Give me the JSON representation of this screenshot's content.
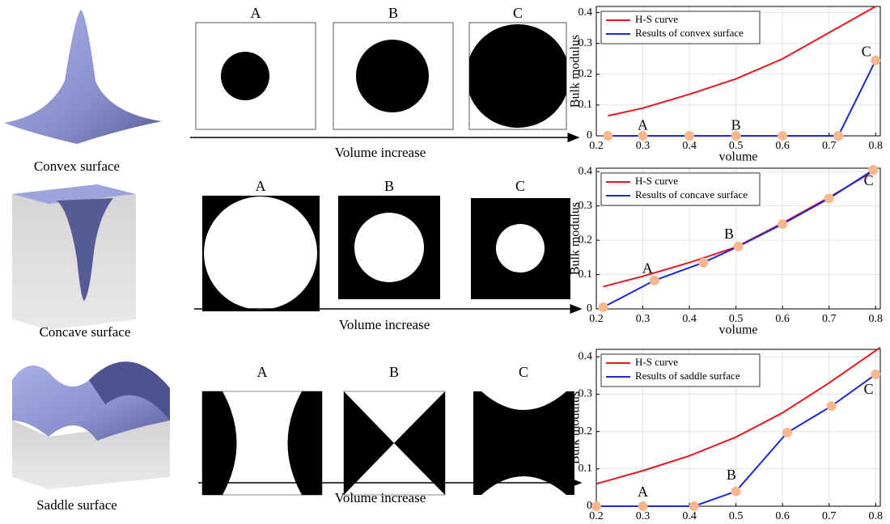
{
  "panels": [
    {
      "surface_label": "Convex surface",
      "cell_labels": [
        "A",
        "B",
        "C"
      ],
      "arrow_label": "Volume increase"
    },
    {
      "surface_label": "Concave surface",
      "cell_labels": [
        "A",
        "B",
        "C"
      ],
      "arrow_label": "Volume increase"
    },
    {
      "surface_label": "Saddle surface",
      "cell_labels": [
        "A",
        "B",
        "C"
      ],
      "arrow_label": "Volume increase"
    }
  ],
  "chart_data": [
    {
      "type": "line",
      "xlabel": "volume",
      "ylabel": "Bulk modulus",
      "xlim": [
        0.2,
        0.81
      ],
      "ylim": [
        0,
        0.42
      ],
      "xticks": [
        0.2,
        0.3,
        0.4,
        0.5,
        0.6,
        0.7,
        0.8
      ],
      "yticks": [
        0,
        0.1,
        0.2,
        0.3,
        0.4
      ],
      "grid": true,
      "legend": "upper left",
      "marker_color": "#f7b78e",
      "series": [
        {
          "name": "H-S curve",
          "color": "#e8141c",
          "x": [
            0.225,
            0.3,
            0.4,
            0.5,
            0.6,
            0.7,
            0.8
          ],
          "values": [
            0.065,
            0.09,
            0.135,
            0.185,
            0.25,
            0.335,
            0.42
          ]
        },
        {
          "name": "Results of convex surface",
          "color": "#1a28d8",
          "markers": true,
          "x": [
            0.225,
            0.3,
            0.4,
            0.5,
            0.6,
            0.72,
            0.8
          ],
          "values": [
            0,
            0,
            0,
            0,
            0,
            0,
            0.245
          ]
        }
      ],
      "annotations": [
        {
          "text": "A",
          "x": 0.3,
          "y": 0.03
        },
        {
          "text": "B",
          "x": 0.5,
          "y": 0.03
        },
        {
          "text": "C",
          "x": 0.78,
          "y": 0.27
        }
      ]
    },
    {
      "type": "line",
      "xlabel": "volume",
      "ylabel": "Bulk modulus",
      "xlim": [
        0.2,
        0.81
      ],
      "ylim": [
        0,
        0.41
      ],
      "xticks": [
        0.2,
        0.3,
        0.4,
        0.5,
        0.6,
        0.7,
        0.8
      ],
      "yticks": [
        0,
        0.1,
        0.2,
        0.3,
        0.4
      ],
      "grid": true,
      "legend": "upper left",
      "marker_color": "#f7b78e",
      "series": [
        {
          "name": "H-S curve",
          "color": "#e8141c",
          "x": [
            0.215,
            0.3,
            0.4,
            0.5,
            0.6,
            0.7,
            0.8
          ],
          "values": [
            0.065,
            0.095,
            0.135,
            0.18,
            0.25,
            0.325,
            0.405
          ]
        },
        {
          "name": "Results of concave surface",
          "color": "#1a28d8",
          "markers": true,
          "x": [
            0.215,
            0.325,
            0.43,
            0.505,
            0.6,
            0.7,
            0.795
          ],
          "values": [
            0.005,
            0.083,
            0.135,
            0.182,
            0.247,
            0.322,
            0.405
          ]
        }
      ],
      "annotations": [
        {
          "text": "A",
          "x": 0.31,
          "y": 0.115
        },
        {
          "text": "B",
          "x": 0.485,
          "y": 0.215
        },
        {
          "text": "C",
          "x": 0.785,
          "y": 0.37
        }
      ]
    },
    {
      "type": "line",
      "xlabel": "volume",
      "ylabel": "Bulk modulus",
      "xlim": [
        0.2,
        0.81
      ],
      "ylim": [
        0,
        0.42
      ],
      "xticks": [
        0.2,
        0.3,
        0.4,
        0.5,
        0.6,
        0.7,
        0.8
      ],
      "yticks": [
        0,
        0.1,
        0.2,
        0.3,
        0.4
      ],
      "grid": true,
      "legend": "upper left",
      "marker_color": "#f7b78e",
      "series": [
        {
          "name": "H-S curve",
          "color": "#e8141c",
          "x": [
            0.2,
            0.3,
            0.4,
            0.5,
            0.6,
            0.7,
            0.81
          ],
          "values": [
            0.06,
            0.095,
            0.135,
            0.185,
            0.25,
            0.33,
            0.425
          ]
        },
        {
          "name": "Results of saddle surface",
          "color": "#1a28d8",
          "markers": true,
          "x": [
            0.2,
            0.3,
            0.41,
            0.5,
            0.61,
            0.705,
            0.8
          ],
          "values": [
            0,
            0,
            0,
            0.04,
            0.197,
            0.268,
            0.353
          ]
        }
      ],
      "annotations": [
        {
          "text": "A",
          "x": 0.3,
          "y": 0.035
        },
        {
          "text": "B",
          "x": 0.49,
          "y": 0.08
        },
        {
          "text": "C",
          "x": 0.785,
          "y": 0.31
        }
      ]
    }
  ]
}
